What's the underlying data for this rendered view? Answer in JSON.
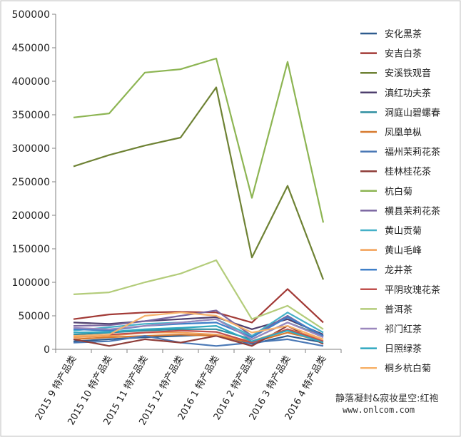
{
  "chart_data": {
    "type": "line",
    "title": "",
    "xlabel": "",
    "ylabel": "",
    "ylim": [
      0,
      500000
    ],
    "yticks": [
      "0",
      "50000",
      "100000",
      "150000",
      "200000",
      "250000",
      "300000",
      "350000",
      "400000",
      "450000",
      "500000"
    ],
    "ytick_values": [
      0,
      50000,
      100000,
      150000,
      200000,
      250000,
      300000,
      350000,
      400000,
      450000,
      500000
    ],
    "categories": [
      "2015 9 特产品类",
      "2015 10 特产品类",
      "2015 11 特产品类",
      "2015 12 特产品类",
      "2016 1 特产品类",
      "2016 2 特产品类",
      "2016 3 特产品类",
      "2016 4 特产品类"
    ],
    "legend_position": "right",
    "grid": false,
    "series": [
      {
        "name": "安化黑茶",
        "color": "#2e5b8e",
        "values": [
          12000,
          15000,
          18000,
          20000,
          22000,
          8000,
          20000,
          10000
        ]
      },
      {
        "name": "安吉白茶",
        "color": "#a23a36",
        "values": [
          45000,
          52000,
          55000,
          56000,
          55000,
          40000,
          90000,
          40000
        ]
      },
      {
        "name": "安溪铁观音",
        "color": "#6e8234",
        "values": [
          273000,
          290000,
          304000,
          316000,
          391000,
          137000,
          244000,
          104000
        ]
      },
      {
        "name": "滇红功夫茶",
        "color": "#4e3f6e",
        "values": [
          40000,
          38000,
          42000,
          45000,
          48000,
          30000,
          45000,
          22000
        ]
      },
      {
        "name": "洞庭山碧螺春",
        "color": "#2f8fa0",
        "values": [
          22000,
          25000,
          28000,
          30000,
          30000,
          15000,
          40000,
          20000
        ]
      },
      {
        "name": "凤凰单枞",
        "color": "#d77a2f",
        "values": [
          15000,
          18000,
          20000,
          22000,
          20000,
          10000,
          25000,
          12000
        ]
      },
      {
        "name": "福州茉莉花茶",
        "color": "#4a78b5",
        "values": [
          10000,
          12000,
          20000,
          10000,
          5000,
          10000,
          15000,
          5000
        ]
      },
      {
        "name": "桂林桂花茶",
        "color": "#8f3e3a",
        "values": [
          15000,
          5000,
          15000,
          10000,
          20000,
          5000,
          35000,
          8000
        ]
      },
      {
        "name": "杭白菊",
        "color": "#8db553",
        "values": [
          346000,
          352000,
          413000,
          418000,
          434000,
          226000,
          429000,
          189000
        ]
      },
      {
        "name": "横县茉莉花茶",
        "color": "#7a66a0",
        "values": [
          35000,
          36000,
          42000,
          50000,
          58000,
          20000,
          50000,
          18000
        ]
      },
      {
        "name": "黄山贡菊",
        "color": "#44b0c8",
        "values": [
          28000,
          33000,
          38000,
          40000,
          45000,
          20000,
          55000,
          25000
        ]
      },
      {
        "name": "黄山毛峰",
        "color": "#f2a057",
        "values": [
          18000,
          20000,
          25000,
          25000,
          22000,
          12000,
          30000,
          15000
        ]
      },
      {
        "name": "龙井茶",
        "color": "#3f7fc8",
        "values": [
          30000,
          28000,
          35000,
          38000,
          40000,
          18000,
          48000,
          20000
        ]
      },
      {
        "name": "平阴玫瑰花茶",
        "color": "#c0504d",
        "values": [
          20000,
          22000,
          25000,
          28000,
          26000,
          10000,
          30000,
          12000
        ]
      },
      {
        "name": "普洱茶",
        "color": "#b3cc7a",
        "values": [
          82000,
          85000,
          100000,
          113000,
          133000,
          45000,
          65000,
          30000
        ]
      },
      {
        "name": "祁门红茶",
        "color": "#9b87bd",
        "values": [
          32000,
          30000,
          35000,
          40000,
          45000,
          15000,
          40000,
          18000
        ]
      },
      {
        "name": "日照绿茶",
        "color": "#30a8c0",
        "values": [
          25000,
          26000,
          30000,
          32000,
          35000,
          12000,
          28000,
          10000
        ]
      },
      {
        "name": "桐乡杭白菊",
        "color": "#f7b26b",
        "values": [
          20000,
          22000,
          50000,
          55000,
          50000,
          25000,
          35000,
          15000
        ]
      }
    ]
  },
  "watermark": {
    "line1": "静落凝封&寂妆星空:红袍",
    "line2": "www.onlcom.com"
  }
}
